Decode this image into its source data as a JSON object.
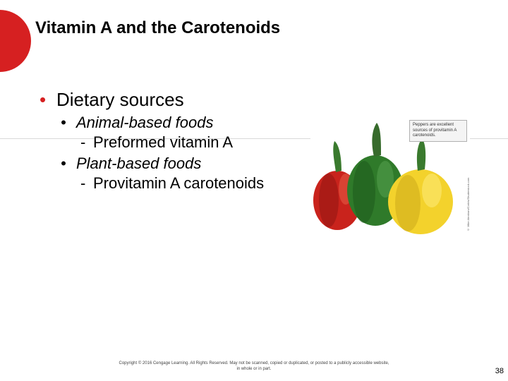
{
  "accent_color": "#d62021",
  "title_color": "#000000",
  "title": "Vitamin A and the Carotenoids",
  "bullets": {
    "l1": "Dietary sources",
    "l2a": "Animal-based foods",
    "l3a": "Preformed vitamin A",
    "l2b": "Plant-based foods",
    "l3b": "Provitamin A carotenoids"
  },
  "figure": {
    "caption": "Peppers are excellent sources of provitamin A carotenoids.",
    "side_credit": "© Mike Abraham/Corbis/Shutterstock.com",
    "peppers": {
      "green": {
        "body": "#2f7a2a",
        "shadow": "#1e5a1c",
        "highlight": "#56a04f",
        "stem": "#376b2c"
      },
      "red": {
        "body": "#c9231c",
        "shadow": "#8f1612",
        "highlight": "#e45843",
        "stem": "#3a7a2e"
      },
      "yellow": {
        "body": "#f3d22c",
        "shadow": "#c9a518",
        "highlight": "#fbe66a",
        "stem": "#3a7a2e"
      }
    }
  },
  "footer": {
    "line1": "Copyright © 2016 Cengage Learning.  All Rights Reserved.  May not be scanned, copied or duplicated, or posted to a publicly accessible website,",
    "line2": "in whole or in part."
  },
  "page_number": "38"
}
